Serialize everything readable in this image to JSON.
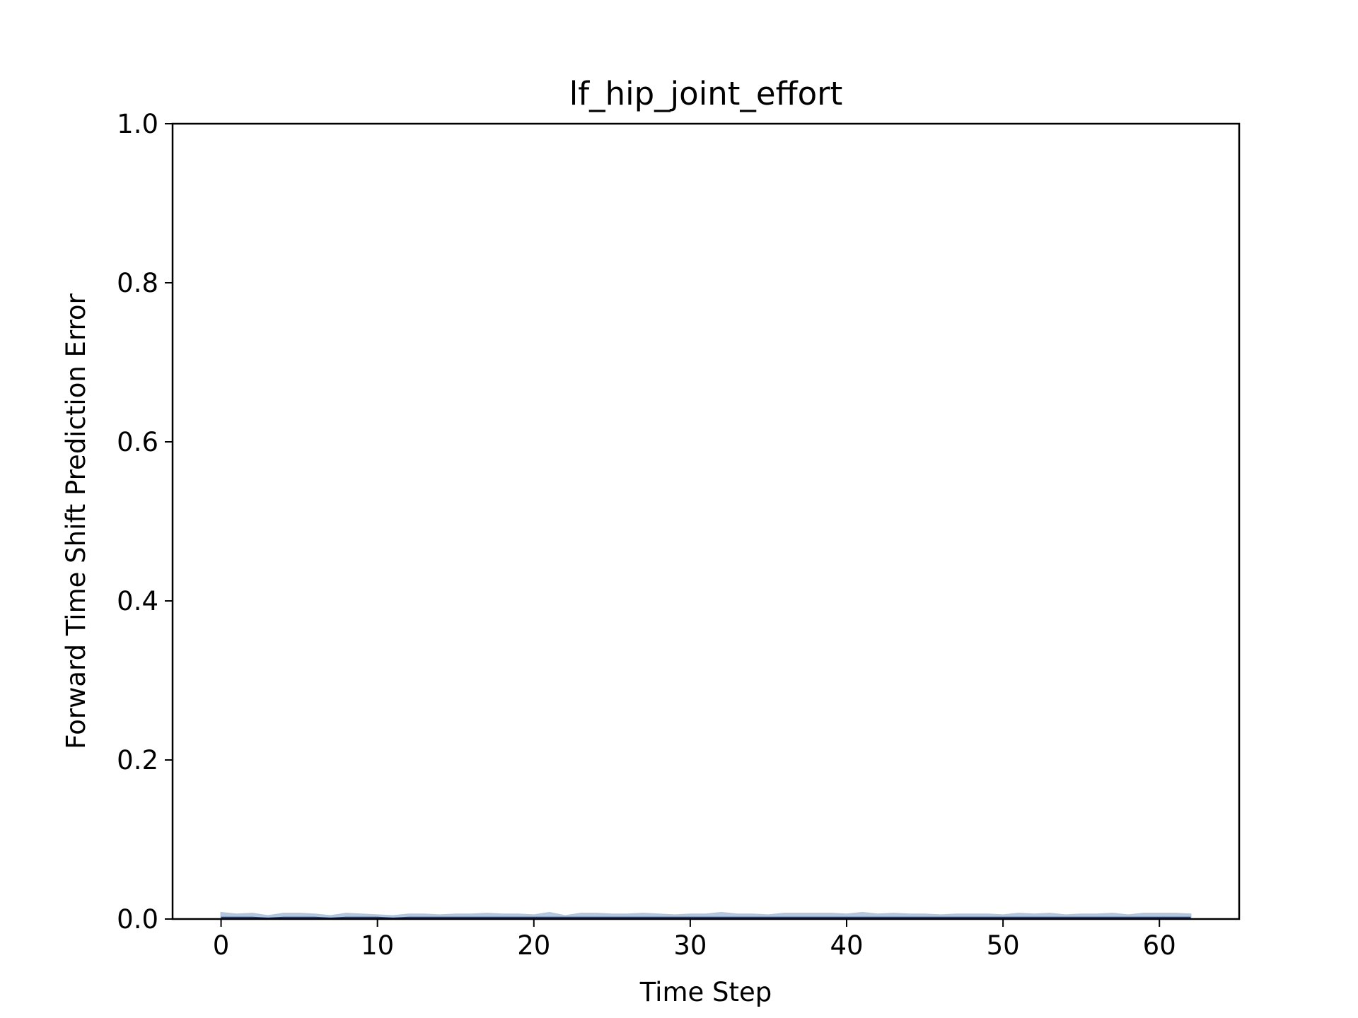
{
  "chart_data": {
    "type": "line",
    "title": "lf_hip_joint_effort",
    "xlabel": "Time Step",
    "ylabel": "Forward Time Shift Prediction Error",
    "xlim": [
      -3.1,
      65.1
    ],
    "ylim": [
      0.0,
      1.0
    ],
    "xticks": [
      0,
      10,
      20,
      30,
      40,
      50,
      60
    ],
    "xtick_labels": [
      "0",
      "10",
      "20",
      "30",
      "40",
      "50",
      "60"
    ],
    "yticks": [
      0.0,
      0.2,
      0.4,
      0.6,
      0.8,
      1.0
    ],
    "ytick_labels": [
      "0.0",
      "0.2",
      "0.4",
      "0.6",
      "0.8",
      "1.0"
    ],
    "grid": false,
    "legend": "none",
    "colors": {
      "band": "#b0c4de",
      "line": "#1f3a66"
    },
    "series": [
      {
        "x": [
          0,
          1,
          2,
          3,
          4,
          5,
          6,
          7,
          8,
          9,
          10,
          11,
          12,
          13,
          14,
          15,
          16,
          17,
          18,
          19,
          20,
          21,
          22,
          23,
          24,
          25,
          26,
          27,
          28,
          29,
          30,
          31,
          32,
          33,
          34,
          35,
          36,
          37,
          38,
          39,
          40,
          41,
          42,
          43,
          44,
          45,
          46,
          47,
          48,
          49,
          50,
          51,
          52,
          53,
          54,
          55,
          56,
          57,
          58,
          59,
          60,
          61,
          62
        ],
        "mean": [
          0.002,
          0.002,
          0.002,
          0.001,
          0.002,
          0.002,
          0.002,
          0.001,
          0.002,
          0.002,
          0.002,
          0.001,
          0.002,
          0.002,
          0.002,
          0.002,
          0.002,
          0.002,
          0.002,
          0.002,
          0.002,
          0.002,
          0.002,
          0.002,
          0.002,
          0.002,
          0.002,
          0.002,
          0.002,
          0.002,
          0.002,
          0.002,
          0.002,
          0.002,
          0.002,
          0.002,
          0.002,
          0.002,
          0.002,
          0.002,
          0.002,
          0.002,
          0.002,
          0.002,
          0.002,
          0.002,
          0.002,
          0.002,
          0.002,
          0.002,
          0.002,
          0.002,
          0.002,
          0.002,
          0.002,
          0.002,
          0.002,
          0.002,
          0.002,
          0.002,
          0.002,
          0.002,
          0.002
        ],
        "lower": [
          0,
          0,
          0,
          0,
          0,
          0,
          0,
          0,
          0,
          0,
          0,
          0,
          0,
          0,
          0,
          0,
          0,
          0,
          0,
          0,
          0,
          0,
          0,
          0,
          0,
          0,
          0,
          0,
          0,
          0,
          0,
          0,
          0,
          0,
          0,
          0,
          0,
          0,
          0,
          0,
          0,
          0,
          0,
          0,
          0,
          0,
          0,
          0,
          0,
          0,
          0,
          0,
          0,
          0,
          0,
          0,
          0,
          0,
          0,
          0,
          0,
          0,
          0
        ],
        "upper": [
          0.008,
          0.006,
          0.007,
          0.004,
          0.007,
          0.007,
          0.006,
          0.004,
          0.007,
          0.006,
          0.005,
          0.004,
          0.006,
          0.006,
          0.005,
          0.006,
          0.006,
          0.007,
          0.006,
          0.006,
          0.005,
          0.008,
          0.004,
          0.007,
          0.007,
          0.006,
          0.006,
          0.007,
          0.006,
          0.005,
          0.006,
          0.006,
          0.008,
          0.006,
          0.006,
          0.005,
          0.007,
          0.007,
          0.007,
          0.007,
          0.006,
          0.008,
          0.006,
          0.007,
          0.006,
          0.006,
          0.005,
          0.006,
          0.006,
          0.006,
          0.005,
          0.007,
          0.006,
          0.007,
          0.005,
          0.006,
          0.006,
          0.007,
          0.005,
          0.007,
          0.007,
          0.007,
          0.006
        ]
      }
    ]
  }
}
